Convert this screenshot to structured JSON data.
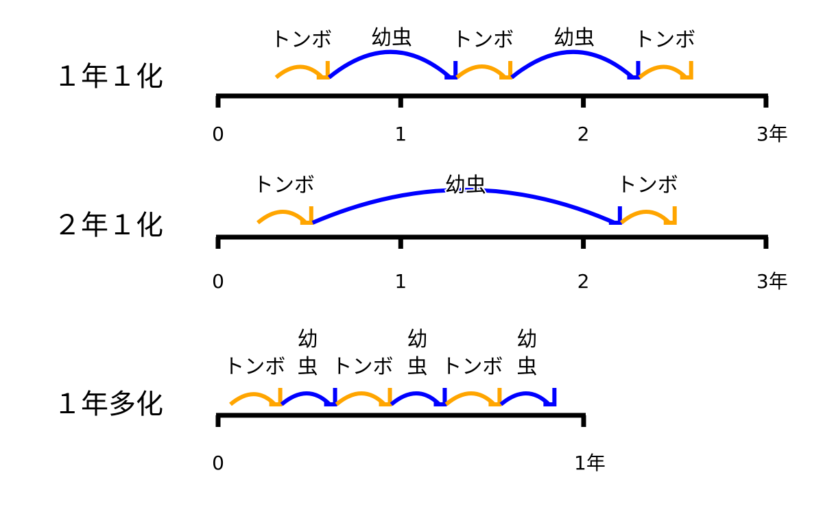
{
  "colors": {
    "dragonfly": "#FFA500",
    "larva": "#0000FF",
    "axis": "#000000"
  },
  "stages": {
    "dragonfly": "トンボ",
    "larva": "幼虫"
  },
  "rows": [
    {
      "label": "１年１化",
      "axis_max_years": 3,
      "ticks": [
        "0",
        "1",
        "2",
        "3年"
      ],
      "segments": [
        {
          "stage": "dragonfly",
          "from": 0.31,
          "to": 0.6
        },
        {
          "stage": "larva",
          "from": 0.6,
          "to": 1.3
        },
        {
          "stage": "dragonfly",
          "from": 1.3,
          "to": 1.6
        },
        {
          "stage": "larva",
          "from": 1.6,
          "to": 2.3
        },
        {
          "stage": "dragonfly",
          "from": 2.3,
          "to": 2.59
        }
      ]
    },
    {
      "label": "２年１化",
      "axis_max_years": 3,
      "ticks": [
        "0",
        "1",
        "2",
        "3年"
      ],
      "segments": [
        {
          "stage": "dragonfly",
          "from": 0.21,
          "to": 0.51
        },
        {
          "stage": "larva",
          "from": 0.51,
          "to": 2.2
        },
        {
          "stage": "dragonfly",
          "from": 2.2,
          "to": 2.5
        }
      ]
    },
    {
      "label": "１年多化",
      "axis_max_years": 1,
      "ticks": [
        "0",
        "1年"
      ],
      "segments": [
        {
          "stage": "dragonfly",
          "from": 0.03,
          "to": 0.17
        },
        {
          "stage": "larva",
          "from": 0.17,
          "to": 0.32
        },
        {
          "stage": "dragonfly",
          "from": 0.32,
          "to": 0.47
        },
        {
          "stage": "larva",
          "from": 0.47,
          "to": 0.62
        },
        {
          "stage": "dragonfly",
          "from": 0.62,
          "to": 0.77
        },
        {
          "stage": "larva",
          "from": 0.77,
          "to": 0.92
        }
      ]
    }
  ]
}
